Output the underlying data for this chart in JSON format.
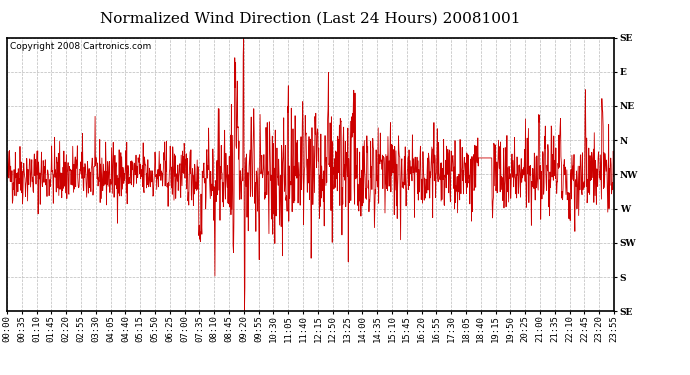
{
  "title": "Normalized Wind Direction (Last 24 Hours) 20081001",
  "copyright_text": "Copyright 2008 Cartronics.com",
  "line_color": "#cc0000",
  "background_color": "#ffffff",
  "plot_bg_color": "#ffffff",
  "ytick_labels": [
    "SE",
    "E",
    "NE",
    "N",
    "NW",
    "W",
    "SW",
    "S",
    "SE"
  ],
  "ytick_values": [
    1.0,
    0.875,
    0.75,
    0.625,
    0.5,
    0.375,
    0.25,
    0.125,
    0.0
  ],
  "ylim": [
    0.0,
    1.0
  ],
  "grid_color": "#bbbbbb",
  "grid_style": "--",
  "xtick_labels": [
    "00:00",
    "00:35",
    "01:10",
    "01:45",
    "02:20",
    "02:55",
    "03:30",
    "04:05",
    "04:40",
    "05:15",
    "05:50",
    "06:25",
    "07:00",
    "07:35",
    "08:10",
    "08:45",
    "09:20",
    "09:55",
    "10:30",
    "11:05",
    "11:40",
    "12:15",
    "12:50",
    "13:25",
    "14:00",
    "14:35",
    "15:10",
    "15:45",
    "16:20",
    "16:55",
    "17:30",
    "18:05",
    "18:40",
    "19:15",
    "19:50",
    "20:25",
    "21:00",
    "21:35",
    "22:10",
    "22:45",
    "23:20",
    "23:55"
  ],
  "n_points": 1440,
  "seed": 42,
  "nw_level": 0.5,
  "title_fontsize": 11,
  "copyright_fontsize": 6.5,
  "tick_fontsize": 6.5
}
